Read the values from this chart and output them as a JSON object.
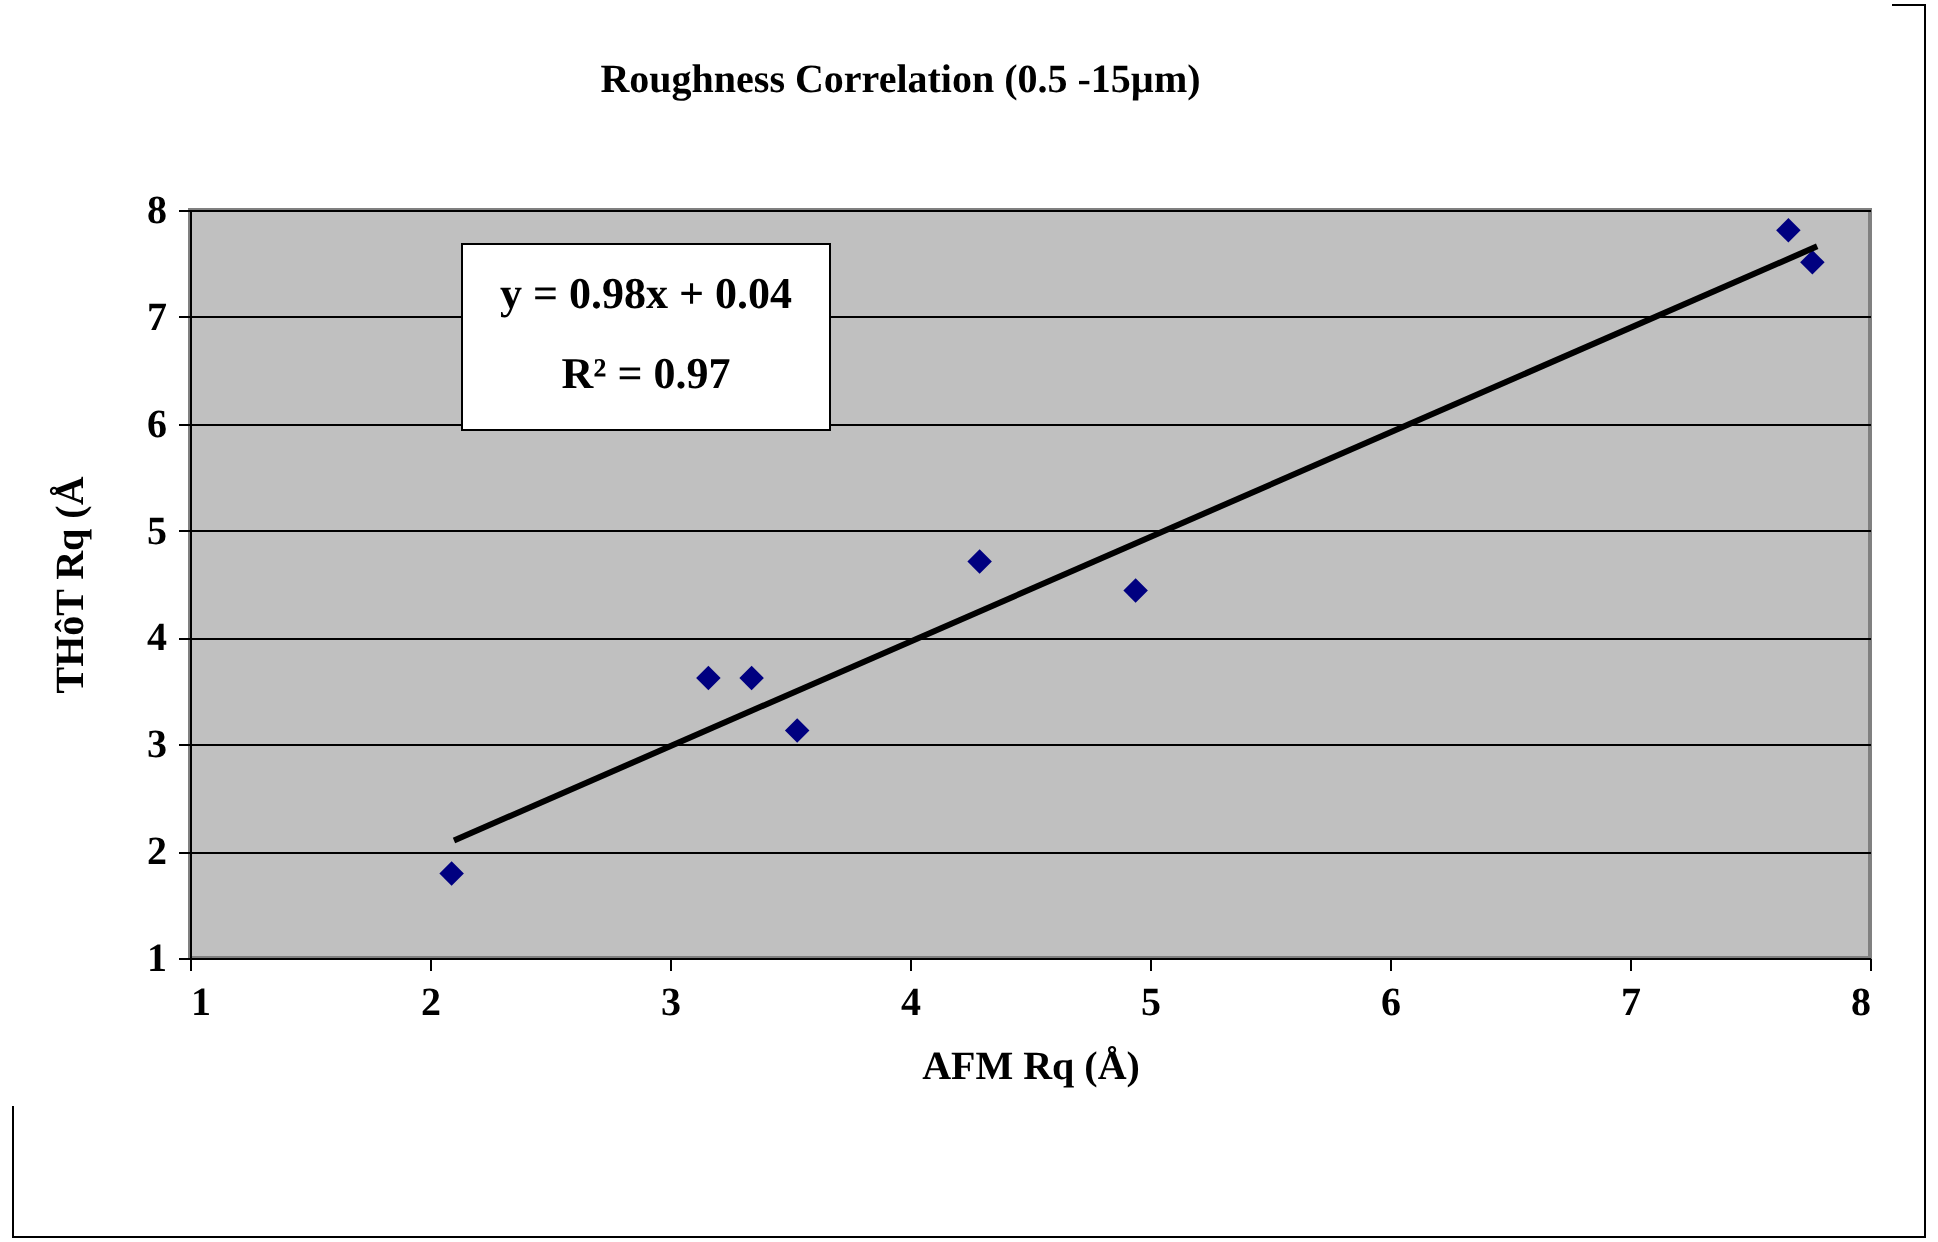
{
  "chart_data": {
    "type": "scatter",
    "title": "Roughness Correlation (0.5 -15µm)",
    "xlabel": "AFM Rq (Å)",
    "ylabel": "THôT Rq (Å",
    "x": [
      2.09,
      3.16,
      3.34,
      3.53,
      4.29,
      4.94,
      7.66,
      7.76
    ],
    "series": [
      {
        "color": "#000080",
        "marker": "diamond",
        "values": [
          1.79,
          3.62,
          3.62,
          3.13,
          4.71,
          4.44,
          7.81,
          7.51
        ]
      },
      {
        "type": "line",
        "color": "#000000",
        "line_style": "solid",
        "x": [
          2.1,
          7.78
        ],
        "values": [
          2.1,
          7.66
        ]
      }
    ],
    "xlim": [
      1,
      8
    ],
    "xticks": [
      1,
      2,
      3,
      4,
      5,
      6,
      7,
      8
    ],
    "ylim": [
      1,
      8
    ],
    "yticks": [
      1,
      2,
      3,
      4,
      5,
      6,
      7,
      8
    ],
    "grid": "y",
    "annotations": [
      "y = 0.98x + 0.04",
      "R² = 0.97"
    ]
  }
}
